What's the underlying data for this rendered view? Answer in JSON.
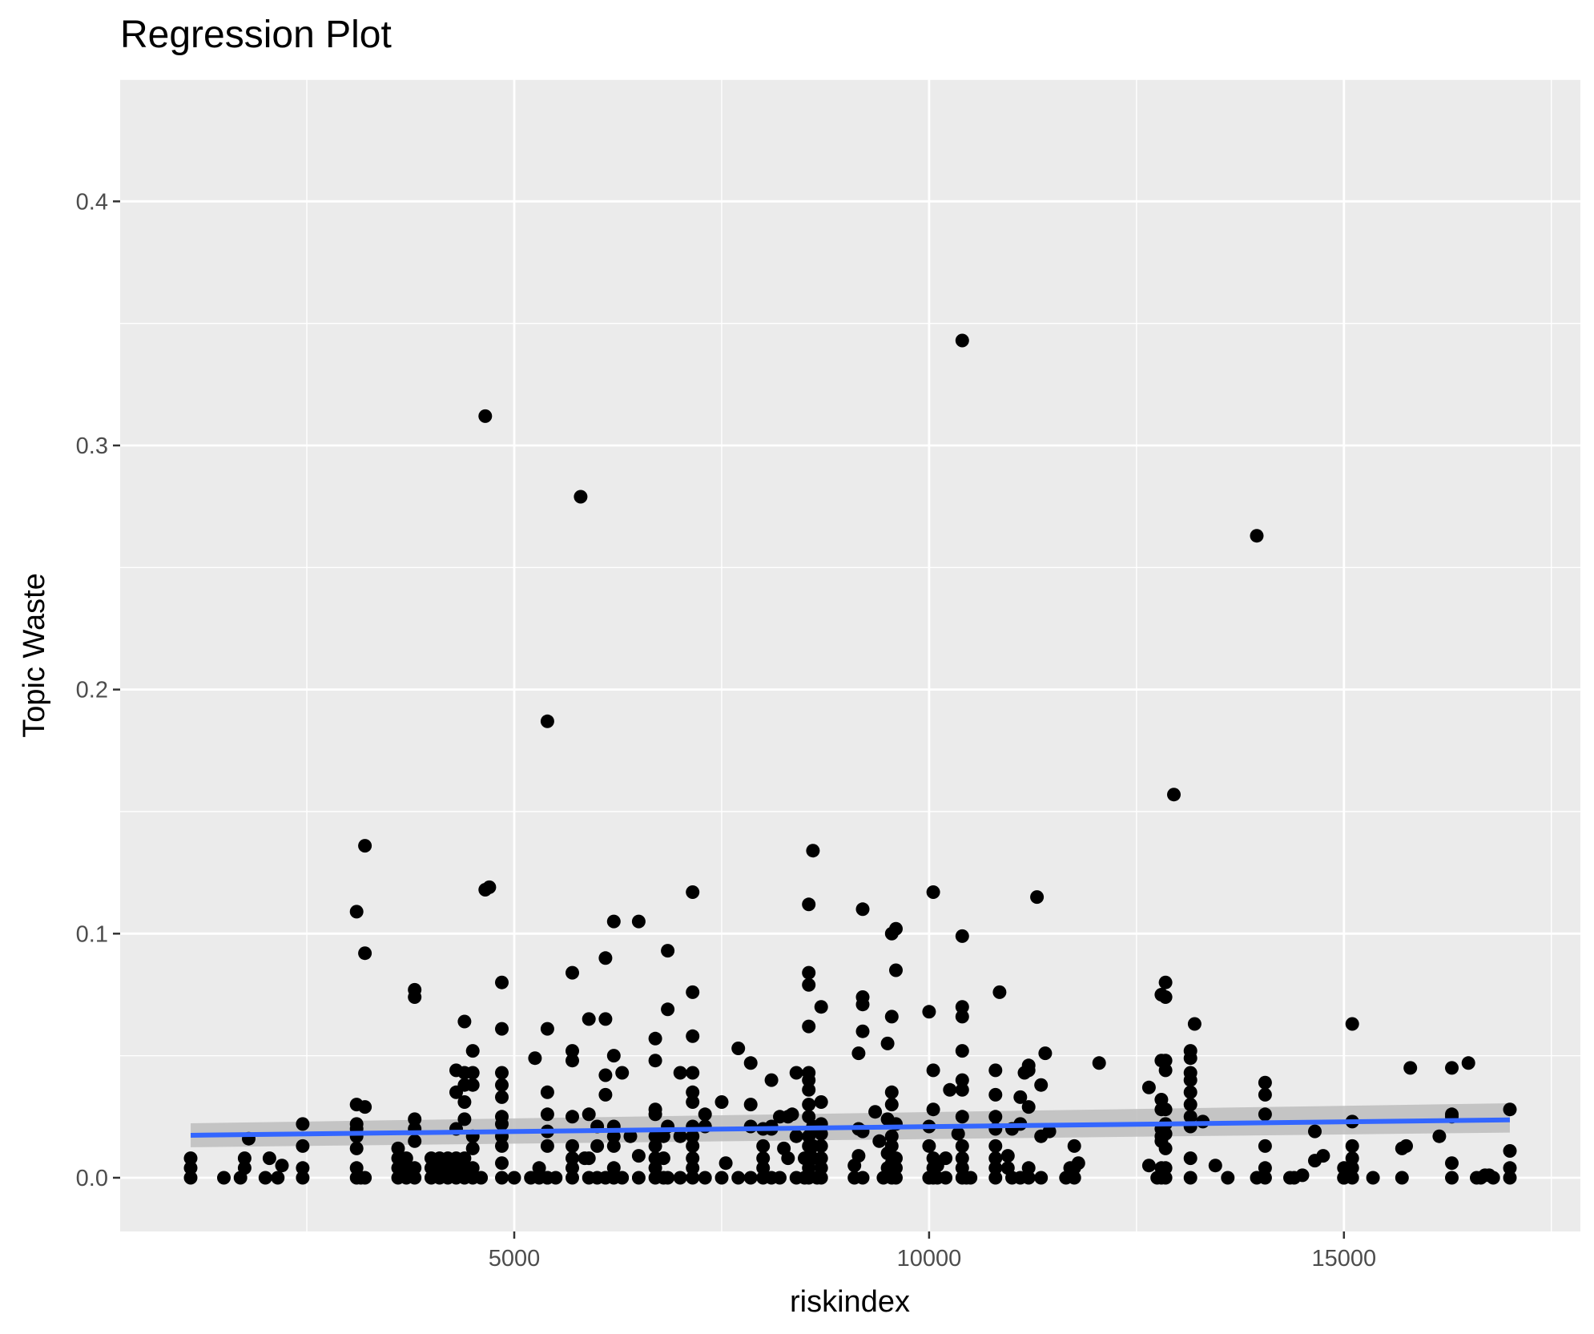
{
  "chart_data": {
    "type": "scatter",
    "title": "Regression Plot",
    "xlabel": "riskindex",
    "ylabel": "Topic Waste",
    "xlim": [
      250,
      17850
    ],
    "ylim": [
      -0.022,
      0.45
    ],
    "xticks": [
      5000,
      10000,
      15000
    ],
    "xtick_labels": [
      "5000",
      "10000",
      "15000"
    ],
    "yticks": [
      0.0,
      0.1,
      0.2,
      0.3,
      0.4
    ],
    "ytick_labels": [
      "0.0",
      "0.1",
      "0.2",
      "0.3",
      "0.4"
    ],
    "grid": true,
    "legend": "none",
    "colors": {
      "panel": "#ebebeb",
      "grid": "#ffffff",
      "points": "#000000",
      "fit_line": "#3366ff",
      "confidence_band": "#bdbdbd"
    },
    "fit": {
      "method": "lm",
      "x": [
        1100,
        17000
      ],
      "y": [
        0.0174,
        0.0237
      ],
      "ci_lower": [
        0.0125,
        0.0185
      ],
      "ci_upper": [
        0.0223,
        0.0305
      ]
    },
    "points": {
      "x": [
        1100,
        1100,
        1100,
        1500,
        1700,
        1750,
        1750,
        1800,
        2000,
        2050,
        2150,
        2200,
        2450,
        2450,
        2450,
        2450,
        3100,
        3100,
        3100,
        3100,
        3100,
        3100,
        3100,
        3100,
        3150,
        3200,
        3200,
        3200,
        3200,
        3600,
        3600,
        3600,
        3600,
        3700,
        3700,
        3700,
        3800,
        3800,
        3800,
        3800,
        3800,
        3800,
        3800,
        4000,
        4000,
        4000,
        4100,
        4100,
        4100,
        4200,
        4200,
        4200,
        4300,
        4300,
        4300,
        4300,
        4300,
        4300,
        4400,
        4400,
        4400,
        4400,
        4400,
        4400,
        4400,
        4400,
        4500,
        4500,
        4500,
        4500,
        4500,
        4500,
        4500,
        4600,
        4650,
        4650,
        4700,
        4850,
        4850,
        4850,
        4850,
        4850,
        4850,
        4850,
        4850,
        4850,
        4850,
        4850,
        5000,
        5200,
        5250,
        5300,
        5300,
        5400,
        5400,
        5400,
        5400,
        5400,
        5400,
        5400,
        5400,
        5500,
        5700,
        5700,
        5700,
        5700,
        5700,
        5700,
        5700,
        5700,
        5800,
        5850,
        5900,
        5900,
        5900,
        5900,
        6000,
        6000,
        6000,
        6100,
        6100,
        6100,
        6100,
        6100,
        6200,
        6200,
        6200,
        6200,
        6200,
        6200,
        6200,
        6300,
        6300,
        6400,
        6500,
        6500,
        6500,
        6700,
        6700,
        6700,
        6700,
        6700,
        6700,
        6700,
        6700,
        6700,
        6800,
        6800,
        6800,
        6850,
        6850,
        6850,
        6850,
        7000,
        7000,
        7000,
        7150,
        7150,
        7150,
        7150,
        7150,
        7150,
        7150,
        7150,
        7150,
        7150,
        7150,
        7150,
        7300,
        7300,
        7300,
        7500,
        7500,
        7550,
        7700,
        7700,
        7850,
        7850,
        7850,
        7850,
        8000,
        8000,
        8000,
        8000,
        8000,
        8100,
        8100,
        8100,
        8100,
        8200,
        8200,
        8250,
        8300,
        8300,
        8350,
        8400,
        8400,
        8400,
        8500,
        8500,
        8550,
        8550,
        8550,
        8550,
        8550,
        8550,
        8550,
        8550,
        8550,
        8550,
        8550,
        8550,
        8550,
        8550,
        8600,
        8600,
        8600,
        8600,
        8650,
        8700,
        8700,
        8700,
        8700,
        8700,
        8700,
        8700,
        8700,
        9100,
        9100,
        9150,
        9150,
        9150,
        9200,
        9200,
        9200,
        9200,
        9200,
        9200,
        9350,
        9400,
        9450,
        9500,
        9500,
        9500,
        9500,
        9550,
        9550,
        9550,
        9550,
        9550,
        9550,
        9550,
        9550,
        9600,
        9600,
        9600,
        9600,
        9600,
        9600,
        10000,
        10000,
        10000,
        10000,
        10050,
        10050,
        10050,
        10050,
        10050,
        10050,
        10100,
        10100,
        10200,
        10200,
        10250,
        10350,
        10400,
        10400,
        10400,
        10400,
        10400,
        10400,
        10400,
        10400,
        10400,
        10400,
        10400,
        10400,
        10450,
        10500,
        10800,
        10800,
        10800,
        10800,
        10800,
        10800,
        10800,
        10800,
        10850,
        10950,
        10950,
        11000,
        11000,
        11100,
        11100,
        11100,
        11150,
        11200,
        11200,
        11200,
        11200,
        11200,
        11300,
        11350,
        11350,
        11350,
        11400,
        11450,
        11650,
        11700,
        11750,
        11750,
        11750,
        11800,
        12050,
        12650,
        12650,
        12750,
        12800,
        12800,
        12800,
        12800,
        12800,
        12800,
        12800,
        12800,
        12800,
        12850,
        12850,
        12850,
        12850,
        12850,
        12850,
        12850,
        12850,
        12850,
        12850,
        12950,
        13150,
        13150,
        13150,
        13150,
        13150,
        13150,
        13150,
        13150,
        13150,
        13150,
        13200,
        13300,
        13450,
        13600,
        13950,
        13950,
        14050,
        14050,
        14050,
        14050,
        14050,
        14050,
        14350,
        14400,
        14500,
        14650,
        14650,
        14750,
        15000,
        15000,
        15000,
        15050,
        15100,
        15100,
        15100,
        15100,
        15100,
        15100,
        15350,
        15700,
        15700,
        15750,
        15800,
        16150,
        16300,
        16300,
        16300,
        16300,
        16300,
        16500,
        16600,
        16650,
        16700,
        16750,
        16800,
        17000,
        17000,
        17000,
        17000
      ],
      "y": [
        0.0,
        0.004,
        0.008,
        0.0,
        0.0,
        0.004,
        0.008,
        0.016,
        0.0,
        0.008,
        0.0,
        0.005,
        0.0,
        0.004,
        0.013,
        0.022,
        0.0,
        0.004,
        0.012,
        0.017,
        0.02,
        0.022,
        0.03,
        0.109,
        0.0,
        0.0,
        0.029,
        0.092,
        0.136,
        0.0,
        0.004,
        0.008,
        0.012,
        0.0,
        0.004,
        0.008,
        0.0,
        0.004,
        0.015,
        0.02,
        0.024,
        0.074,
        0.077,
        0.0,
        0.004,
        0.008,
        0.0,
        0.004,
        0.008,
        0.0,
        0.004,
        0.008,
        0.0,
        0.004,
        0.008,
        0.02,
        0.035,
        0.044,
        0.0,
        0.004,
        0.008,
        0.024,
        0.031,
        0.038,
        0.043,
        0.064,
        0.0,
        0.004,
        0.012,
        0.017,
        0.038,
        0.043,
        0.052,
        0.0,
        0.118,
        0.312,
        0.119,
        0.0,
        0.006,
        0.013,
        0.017,
        0.022,
        0.025,
        0.033,
        0.038,
        0.043,
        0.061,
        0.08,
        0.0,
        0.0,
        0.049,
        0.0,
        0.004,
        0.0,
        0.013,
        0.019,
        0.026,
        0.035,
        0.061,
        0.187,
        0.0,
        0.0,
        0.0,
        0.004,
        0.008,
        0.013,
        0.025,
        0.048,
        0.052,
        0.084,
        0.279,
        0.008,
        0.0,
        0.026,
        0.065,
        0.008,
        0.0,
        0.013,
        0.021,
        0.0,
        0.034,
        0.042,
        0.065,
        0.09,
        0.0,
        0.004,
        0.013,
        0.017,
        0.021,
        0.05,
        0.105,
        0.0,
        0.043,
        0.017,
        0.0,
        0.009,
        0.105,
        0.0,
        0.004,
        0.008,
        0.013,
        0.017,
        0.026,
        0.028,
        0.048,
        0.057,
        0.0,
        0.008,
        0.017,
        0.0,
        0.021,
        0.069,
        0.093,
        0.0,
        0.017,
        0.043,
        0.0,
        0.004,
        0.008,
        0.013,
        0.017,
        0.021,
        0.031,
        0.035,
        0.043,
        0.058,
        0.076,
        0.117,
        0.0,
        0.021,
        0.026,
        0.0,
        0.031,
        0.006,
        0.0,
        0.053,
        0.0,
        0.021,
        0.03,
        0.047,
        0.0,
        0.004,
        0.008,
        0.013,
        0.02,
        0.0,
        0.021,
        0.02,
        0.04,
        0.0,
        0.025,
        0.012,
        0.008,
        0.025,
        0.026,
        0.0,
        0.017,
        0.043,
        0.0,
        0.008,
        0.0,
        0.004,
        0.008,
        0.013,
        0.017,
        0.025,
        0.03,
        0.036,
        0.04,
        0.043,
        0.062,
        0.079,
        0.084,
        0.112,
        0.008,
        0.013,
        0.021,
        0.134,
        0.0,
        0.0,
        0.004,
        0.008,
        0.013,
        0.018,
        0.022,
        0.031,
        0.07,
        0.0,
        0.005,
        0.009,
        0.02,
        0.051,
        0.0,
        0.019,
        0.06,
        0.071,
        0.074,
        0.11,
        0.027,
        0.015,
        0.0,
        0.004,
        0.01,
        0.024,
        0.055,
        0.0,
        0.006,
        0.013,
        0.017,
        0.03,
        0.035,
        0.066,
        0.1,
        0.0,
        0.004,
        0.008,
        0.022,
        0.085,
        0.102,
        0.0,
        0.013,
        0.021,
        0.068,
        0.0,
        0.004,
        0.008,
        0.028,
        0.044,
        0.117,
        0.0,
        0.005,
        0.0,
        0.008,
        0.036,
        0.018,
        0.0,
        0.004,
        0.008,
        0.013,
        0.025,
        0.036,
        0.04,
        0.052,
        0.066,
        0.07,
        0.099,
        0.343,
        0.0,
        0.0,
        0.0,
        0.004,
        0.008,
        0.013,
        0.02,
        0.025,
        0.034,
        0.044,
        0.076,
        0.004,
        0.009,
        0.0,
        0.02,
        0.0,
        0.022,
        0.033,
        0.043,
        0.0,
        0.004,
        0.029,
        0.044,
        0.046,
        0.115,
        0.0,
        0.017,
        0.038,
        0.051,
        0.019,
        0.0,
        0.004,
        0.013,
        0.0,
        0.004,
        0.006,
        0.047,
        0.005,
        0.037,
        0.0,
        0.032,
        0.0,
        0.004,
        0.015,
        0.017,
        0.02,
        0.028,
        0.048,
        0.075,
        0.08,
        0.0,
        0.004,
        0.012,
        0.018,
        0.022,
        0.028,
        0.044,
        0.048,
        0.074,
        0.157,
        0.049,
        0.0,
        0.008,
        0.021,
        0.025,
        0.03,
        0.035,
        0.04,
        0.043,
        0.052,
        0.063,
        0.023,
        0.005,
        0.0,
        0.263,
        0.0,
        0.0,
        0.004,
        0.013,
        0.026,
        0.034,
        0.039,
        0.0,
        0.0,
        0.001,
        0.007,
        0.019,
        0.009,
        0.0,
        0.004,
        0.0,
        0.004,
        0.0,
        0.004,
        0.008,
        0.013,
        0.023,
        0.063,
        0.0,
        0.0,
        0.012,
        0.013,
        0.045,
        0.017,
        0.0,
        0.006,
        0.025,
        0.045,
        0.026,
        0.047,
        0.0,
        0.0,
        0.001,
        0.001,
        0.0,
        0.0,
        0.004,
        0.011,
        0.028
      ]
    }
  }
}
